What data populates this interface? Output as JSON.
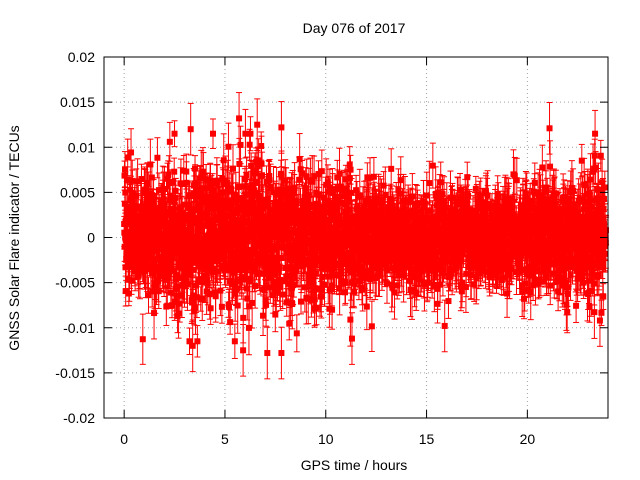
{
  "chart_data": {
    "type": "scatter",
    "title": "Day 076 of 2017",
    "xlabel": "GPS time / hours",
    "ylabel": "GNSS Solar Flare indicator / TECUs",
    "xlim": [
      -1,
      24
    ],
    "ylim": [
      -0.02,
      0.02
    ],
    "xticks": [
      0,
      5,
      10,
      15,
      20
    ],
    "xtick_labels": [
      "0",
      "5",
      "10",
      "15",
      "20"
    ],
    "yticks": [
      -0.02,
      -0.015,
      -0.01,
      -0.005,
      0,
      0.005,
      0.01,
      0.015,
      0.02
    ],
    "ytick_labels": [
      "-0.02",
      "-0.015",
      "-0.01",
      "-0.005",
      "0",
      "0.005",
      "0.01",
      "0.015",
      "0.02"
    ],
    "grid": true,
    "series": [
      {
        "name": "GNSS Solar Flare indicator",
        "color": "#ff0000",
        "marker": "square",
        "error_bars": true,
        "generated": {
          "x_start": 0.0,
          "x_end": 23.9,
          "n_points": 2870,
          "y_mean": 0.0,
          "base_error": 0.0022,
          "spread_by_hour": [
            {
              "hour": 0,
              "sd": 0.0042
            },
            {
              "hour": 4,
              "sd": 0.0048
            },
            {
              "hour": 6,
              "sd": 0.0056
            },
            {
              "hour": 8,
              "sd": 0.005
            },
            {
              "hour": 11,
              "sd": 0.004
            },
            {
              "hour": 13,
              "sd": 0.003
            },
            {
              "hour": 16,
              "sd": 0.003
            },
            {
              "hour": 19,
              "sd": 0.003
            },
            {
              "hour": 21,
              "sd": 0.004
            },
            {
              "hour": 24,
              "sd": 0.004
            }
          ]
        },
        "notable_points": [
          {
            "x": 3.3,
            "y": 0.012
          },
          {
            "x": 5.7,
            "y": 0.0132
          },
          {
            "x": 6.6,
            "y": 0.0125
          },
          {
            "x": 7.8,
            "y": 0.0122
          },
          {
            "x": 21.1,
            "y": 0.0121
          },
          {
            "x": 3.4,
            "y": -0.012
          },
          {
            "x": 5.9,
            "y": -0.0125
          },
          {
            "x": 7.1,
            "y": -0.0128
          },
          {
            "x": 7.8,
            "y": -0.0128
          },
          {
            "x": 11.3,
            "y": -0.0112
          },
          {
            "x": 15.9,
            "y": -0.0098
          },
          {
            "x": 23.6,
            "y": -0.0092
          }
        ]
      }
    ]
  }
}
